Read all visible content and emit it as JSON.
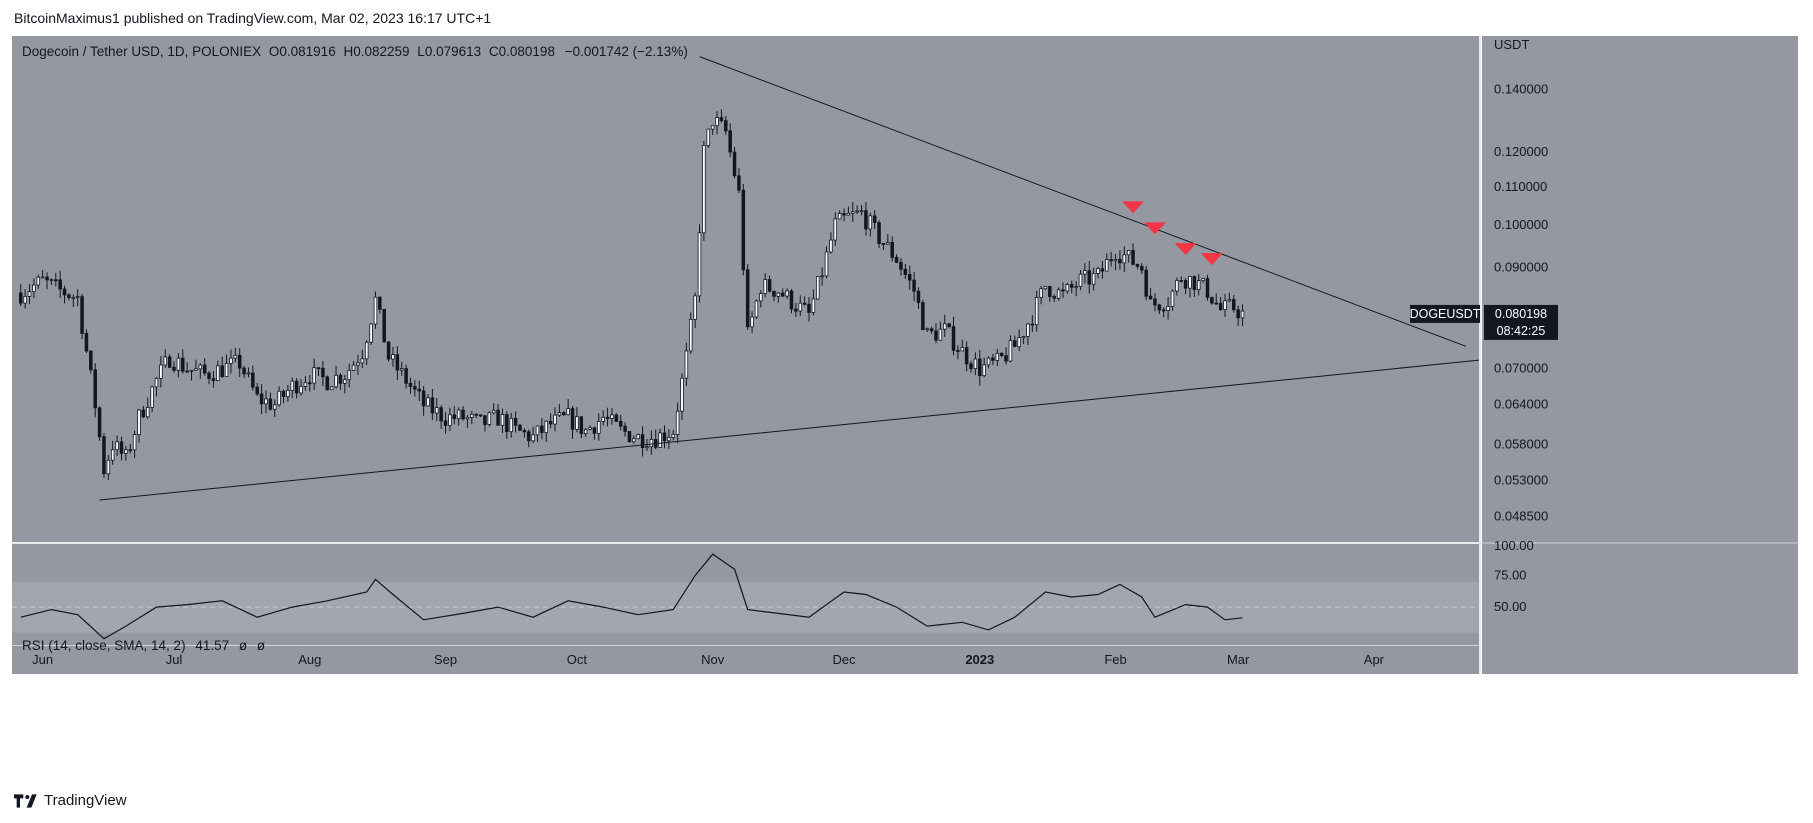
{
  "attribution": "BitcoinMaximus1 published on TradingView.com, Mar 02, 2023 16:17 UTC+1",
  "footer": {
    "brand": "TradingView"
  },
  "legend": {
    "symbol": "Dogecoin / Tether USD, 1D, POLONIEX",
    "open_label": "O",
    "open": "0.081916",
    "high_label": "H",
    "high": "0.082259",
    "low_label": "L",
    "low": "0.079613",
    "close_label": "C",
    "close": "0.080198",
    "change": "−0.001742 (−2.13%)"
  },
  "rsi_legend": {
    "label": "RSI (14, close, SMA, 14, 2)",
    "value": "41.57",
    "ma1": "ø",
    "ma2": "ø"
  },
  "price_tag": {
    "symbol": "DOGEUSDT",
    "price": "0.080198",
    "countdown": "08:42:25"
  },
  "colors": {
    "panel_bg": "#9598a1",
    "rsi_band": "#a3a6ae",
    "candle_up": "#ffffff",
    "candle_down": "#131722",
    "arrow": "#f23645",
    "trendline": "#131722",
    "rsi_line": "#131722"
  },
  "chart_data": [
    {
      "type": "candlestick",
      "title": "Dogecoin / Tether USD, 1D, POLONIEX",
      "ylabel": "USDT",
      "y_scale": "log",
      "ylim": [
        0.0455,
        0.16
      ],
      "y_ticks": [
        "0.140000",
        "0.120000",
        "0.110000",
        "0.100000",
        "0.090000",
        "0.070000",
        "0.064000",
        "0.058000",
        "0.053000",
        "0.048500"
      ],
      "x_ticks": [
        "Jun",
        "Jul",
        "Aug",
        "Sep",
        "Oct",
        "Nov",
        "Dec",
        "2023",
        "Feb",
        "Mar",
        "Apr"
      ],
      "x_range": [
        "2022-05-25",
        "2023-04-25"
      ],
      "series": [
        {
          "name": "DOGEUSDT",
          "points": [
            {
              "d": "2022-05-27",
              "c": 0.0845
            },
            {
              "d": "2022-06-01",
              "c": 0.087
            },
            {
              "d": "2022-06-05",
              "c": 0.085
            },
            {
              "d": "2022-06-09",
              "c": 0.0835
            },
            {
              "d": "2022-06-13",
              "c": 0.064
            },
            {
              "d": "2022-06-15",
              "c": 0.0545
            },
            {
              "d": "2022-06-17",
              "c": 0.058
            },
            {
              "d": "2022-06-20",
              "c": 0.056
            },
            {
              "d": "2022-06-23",
              "c": 0.062
            },
            {
              "d": "2022-06-27",
              "c": 0.068
            },
            {
              "d": "2022-06-30",
              "c": 0.072
            },
            {
              "d": "2022-07-04",
              "c": 0.07
            },
            {
              "d": "2022-07-08",
              "c": 0.069
            },
            {
              "d": "2022-07-12",
              "c": 0.07
            },
            {
              "d": "2022-07-16",
              "c": 0.071
            },
            {
              "d": "2022-07-20",
              "c": 0.065
            },
            {
              "d": "2022-07-24",
              "c": 0.064
            },
            {
              "d": "2022-07-28",
              "c": 0.067
            },
            {
              "d": "2022-08-01",
              "c": 0.069
            },
            {
              "d": "2022-08-05",
              "c": 0.068
            },
            {
              "d": "2022-08-09",
              "c": 0.069
            },
            {
              "d": "2022-08-13",
              "c": 0.073
            },
            {
              "d": "2022-08-16",
              "c": 0.083
            },
            {
              "d": "2022-08-19",
              "c": 0.072
            },
            {
              "d": "2022-08-23",
              "c": 0.068
            },
            {
              "d": "2022-08-27",
              "c": 0.064
            },
            {
              "d": "2022-09-01",
              "c": 0.062
            },
            {
              "d": "2022-09-05",
              "c": 0.062
            },
            {
              "d": "2022-09-09",
              "c": 0.061
            },
            {
              "d": "2022-09-13",
              "c": 0.062
            },
            {
              "d": "2022-09-17",
              "c": 0.06
            },
            {
              "d": "2022-09-21",
              "c": 0.059
            },
            {
              "d": "2022-09-25",
              "c": 0.061
            },
            {
              "d": "2022-09-29",
              "c": 0.062
            },
            {
              "d": "2022-10-03",
              "c": 0.06
            },
            {
              "d": "2022-10-07",
              "c": 0.062
            },
            {
              "d": "2022-10-11",
              "c": 0.06
            },
            {
              "d": "2022-10-15",
              "c": 0.059
            },
            {
              "d": "2022-10-19",
              "c": 0.059
            },
            {
              "d": "2022-10-23",
              "c": 0.06
            },
            {
              "d": "2022-10-26",
              "c": 0.072
            },
            {
              "d": "2022-10-28",
              "c": 0.083
            },
            {
              "d": "2022-10-30",
              "c": 0.12
            },
            {
              "d": "2022-11-01",
              "c": 0.13
            },
            {
              "d": "2022-11-04",
              "c": 0.126
            },
            {
              "d": "2022-11-07",
              "c": 0.108
            },
            {
              "d": "2022-11-09",
              "c": 0.076
            },
            {
              "d": "2022-11-12",
              "c": 0.086
            },
            {
              "d": "2022-11-16",
              "c": 0.085
            },
            {
              "d": "2022-11-20",
              "c": 0.082
            },
            {
              "d": "2022-11-23",
              "c": 0.08
            },
            {
              "d": "2022-11-26",
              "c": 0.089
            },
            {
              "d": "2022-11-29",
              "c": 0.1
            },
            {
              "d": "2022-12-02",
              "c": 0.102
            },
            {
              "d": "2022-12-05",
              "c": 0.103
            },
            {
              "d": "2022-12-09",
              "c": 0.097
            },
            {
              "d": "2022-12-13",
              "c": 0.092
            },
            {
              "d": "2022-12-17",
              "c": 0.085
            },
            {
              "d": "2022-12-20",
              "c": 0.076
            },
            {
              "d": "2022-12-24",
              "c": 0.077
            },
            {
              "d": "2022-12-28",
              "c": 0.073
            },
            {
              "d": "2023-01-01",
              "c": 0.07
            },
            {
              "d": "2023-01-05",
              "c": 0.071
            },
            {
              "d": "2023-01-09",
              "c": 0.074
            },
            {
              "d": "2023-01-13",
              "c": 0.08
            },
            {
              "d": "2023-01-16",
              "c": 0.086
            },
            {
              "d": "2023-01-20",
              "c": 0.084
            },
            {
              "d": "2023-01-24",
              "c": 0.087
            },
            {
              "d": "2023-01-28",
              "c": 0.088
            },
            {
              "d": "2023-02-01",
              "c": 0.094
            },
            {
              "d": "2023-02-04",
              "c": 0.092
            },
            {
              "d": "2023-02-07",
              "c": 0.09
            },
            {
              "d": "2023-02-09",
              "c": 0.082
            },
            {
              "d": "2023-02-13",
              "c": 0.083
            },
            {
              "d": "2023-02-16",
              "c": 0.088
            },
            {
              "d": "2023-02-19",
              "c": 0.087
            },
            {
              "d": "2023-02-22",
              "c": 0.085
            },
            {
              "d": "2023-02-25",
              "c": 0.081
            },
            {
              "d": "2023-02-28",
              "c": 0.0815
            },
            {
              "d": "2023-03-02",
              "c": 0.0802
            }
          ]
        }
      ],
      "trendlines": [
        {
          "name": "descending resistance",
          "from": {
            "d": "2022-10-29",
            "v": 0.152
          },
          "to": {
            "d": "2023-04-22",
            "v": 0.074
          }
        },
        {
          "name": "ascending support",
          "from": {
            "d": "2022-06-14",
            "v": 0.0505
          },
          "to": {
            "d": "2023-04-25",
            "v": 0.0715
          }
        }
      ],
      "markers": [
        {
          "type": "down-arrow",
          "d": "2023-02-05",
          "v": 0.1045
        },
        {
          "type": "down-arrow",
          "d": "2023-02-10",
          "v": 0.0992
        },
        {
          "type": "down-arrow",
          "d": "2023-02-17",
          "v": 0.0942
        },
        {
          "type": "down-arrow",
          "d": "2023-02-23",
          "v": 0.0919
        }
      ],
      "last_price": 0.080198,
      "grid": false
    },
    {
      "type": "line",
      "title": "RSI (14, close, SMA, 14, 2)",
      "ylim": [
        20,
        100
      ],
      "y_ticks": [
        "100.00",
        "75.00",
        "50.00"
      ],
      "bands": [
        30,
        70
      ],
      "midline": 50,
      "series": [
        {
          "name": "RSI",
          "points": [
            {
              "d": "2022-05-27",
              "v": 42
            },
            {
              "d": "2022-06-03",
              "v": 48
            },
            {
              "d": "2022-06-09",
              "v": 44
            },
            {
              "d": "2022-06-15",
              "v": 25
            },
            {
              "d": "2022-06-20",
              "v": 35
            },
            {
              "d": "2022-06-27",
              "v": 50
            },
            {
              "d": "2022-07-04",
              "v": 52
            },
            {
              "d": "2022-07-12",
              "v": 55
            },
            {
              "d": "2022-07-20",
              "v": 42
            },
            {
              "d": "2022-07-28",
              "v": 50
            },
            {
              "d": "2022-08-05",
              "v": 55
            },
            {
              "d": "2022-08-14",
              "v": 62
            },
            {
              "d": "2022-08-16",
              "v": 72
            },
            {
              "d": "2022-08-20",
              "v": 60
            },
            {
              "d": "2022-08-27",
              "v": 40
            },
            {
              "d": "2022-09-05",
              "v": 45
            },
            {
              "d": "2022-09-13",
              "v": 50
            },
            {
              "d": "2022-09-21",
              "v": 42
            },
            {
              "d": "2022-09-29",
              "v": 55
            },
            {
              "d": "2022-10-07",
              "v": 50
            },
            {
              "d": "2022-10-15",
              "v": 44
            },
            {
              "d": "2022-10-23",
              "v": 48
            },
            {
              "d": "2022-10-28",
              "v": 75
            },
            {
              "d": "2022-11-01",
              "v": 92
            },
            {
              "d": "2022-11-06",
              "v": 80
            },
            {
              "d": "2022-11-09",
              "v": 48
            },
            {
              "d": "2022-11-16",
              "v": 45
            },
            {
              "d": "2022-11-23",
              "v": 42
            },
            {
              "d": "2022-12-01",
              "v": 62
            },
            {
              "d": "2022-12-06",
              "v": 60
            },
            {
              "d": "2022-12-13",
              "v": 50
            },
            {
              "d": "2022-12-20",
              "v": 35
            },
            {
              "d": "2022-12-28",
              "v": 38
            },
            {
              "d": "2023-01-03",
              "v": 32
            },
            {
              "d": "2023-01-09",
              "v": 42
            },
            {
              "d": "2023-01-16",
              "v": 62
            },
            {
              "d": "2023-01-22",
              "v": 58
            },
            {
              "d": "2023-01-28",
              "v": 60
            },
            {
              "d": "2023-02-02",
              "v": 68
            },
            {
              "d": "2023-02-07",
              "v": 58
            },
            {
              "d": "2023-02-10",
              "v": 42
            },
            {
              "d": "2023-02-17",
              "v": 52
            },
            {
              "d": "2023-02-22",
              "v": 50
            },
            {
              "d": "2023-02-26",
              "v": 40
            },
            {
              "d": "2023-03-02",
              "v": 41.57
            }
          ]
        }
      ]
    }
  ]
}
